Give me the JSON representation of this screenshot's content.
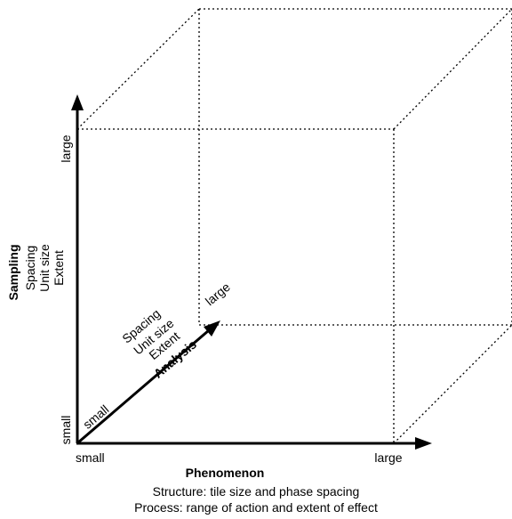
{
  "axes": {
    "phenomenon": {
      "title": "Phenomenon",
      "small": "small",
      "large": "large"
    },
    "sampling": {
      "title": "Sampling",
      "items": [
        "Spacing",
        "Unit size",
        "Extent"
      ],
      "small": "small",
      "large": "large"
    },
    "analysis": {
      "title": "Analysis",
      "items": [
        "Spacing",
        "Unit size",
        "Extent"
      ],
      "small": "small",
      "large": "large"
    }
  },
  "caption": {
    "line1": "Structure: tile size and phase spacing",
    "line2": "Process: range of action and extent of effect"
  }
}
